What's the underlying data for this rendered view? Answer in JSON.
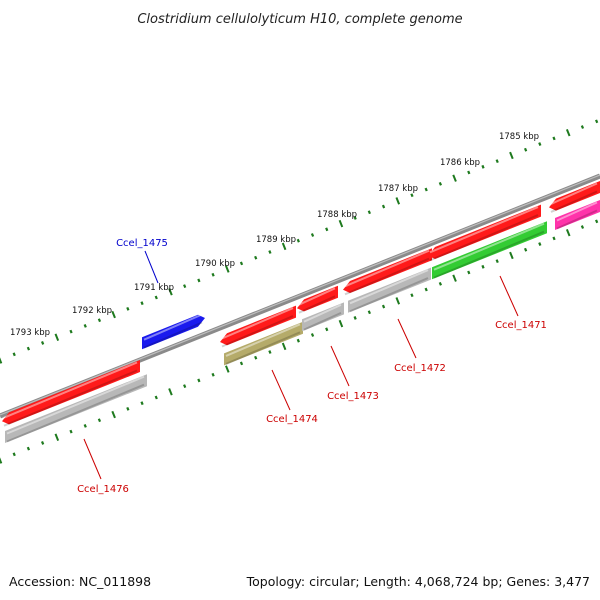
{
  "title": "Clostridium cellulolyticum H10, complete genome",
  "footer": {
    "accession": "Accession: NC_011898",
    "topology": "Topology: circular; Length: 4,068,724 bp; Genes: 3,477"
  },
  "colors": {
    "backbone": "#7a7a7a",
    "tick_mark": "#1e7a1e",
    "label_red": "#cc0000",
    "label_blue": "#0000cc",
    "gene_red": "#ff1a1a",
    "gene_grey": "#b8b8b8",
    "gene_green": "#33cc33",
    "gene_olive": "#b5ab6a",
    "gene_blue": "#1a1aee",
    "gene_magenta": "#ff33aa"
  },
  "ticks": [
    "1785 kbp",
    "1786 kbp",
    "1787 kbp",
    "1788 kbp",
    "1789 kbp",
    "1790 kbp",
    "1791 kbp",
    "1792 kbp",
    "1793 kbp"
  ],
  "gene_labels": [
    {
      "text": "Ccel_1475",
      "color": "blue"
    },
    {
      "text": "Ccel_1471",
      "color": "red"
    },
    {
      "text": "Ccel_1472",
      "color": "red"
    },
    {
      "text": "Ccel_1473",
      "color": "red"
    },
    {
      "text": "Ccel_1474",
      "color": "red"
    },
    {
      "text": "Ccel_1476",
      "color": "red"
    }
  ]
}
